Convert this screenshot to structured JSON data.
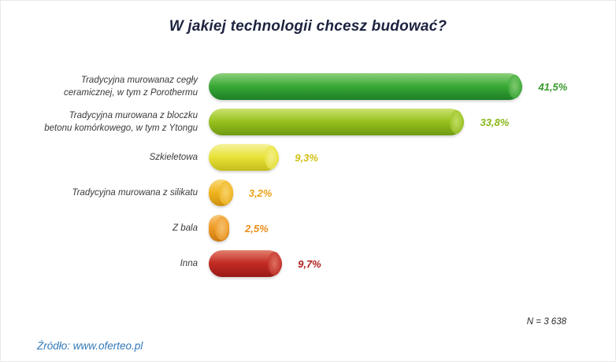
{
  "header": {
    "title": "W jakiej technologii chcesz budować?"
  },
  "footer": {
    "n_label": "N = 3 638",
    "source": "Źródło: www.oferteo.pl"
  },
  "chart_data": {
    "type": "bar",
    "orientation": "horizontal",
    "title": "W jakiej technologii chcesz budować?",
    "categories": [
      "Tradycyjna murowanaz cegły\nceramicznej, w tym z Porothermu",
      "Tradycyjna murowana z bloczku\nbetonu komórkowego, w tym z Ytongu",
      "Szkieletowa",
      "Tradycyjna murowana z silikatu",
      "Z bala",
      "Inna"
    ],
    "values": [
      41.5,
      33.8,
      9.3,
      3.2,
      2.5,
      9.7
    ],
    "value_labels": [
      "41,5%",
      "33,8%",
      "9,3%",
      "3,2%",
      "2,5%",
      "9,7%"
    ],
    "unit": "%",
    "xlim": [
      0,
      43
    ],
    "grid": false,
    "legend": false,
    "sample_size": "N = 3 638",
    "bar_colors": [
      {
        "light": "#8fd07d",
        "base": "#39a935",
        "dark": "#1e7f27",
        "value_color": "#3a9a2f"
      },
      {
        "light": "#cbe272",
        "base": "#97c11e",
        "dark": "#6f9a12",
        "value_color": "#8ab71b"
      },
      {
        "light": "#f6f29e",
        "base": "#e8e337",
        "dark": "#c4bc1c",
        "value_color": "#d2c013"
      },
      {
        "light": "#f9d97c",
        "base": "#f1b51f",
        "dark": "#cd9010",
        "value_color": "#eba31a"
      },
      {
        "light": "#f8ca82",
        "base": "#ef9a23",
        "dark": "#cb7a12",
        "value_color": "#ee8c1a"
      },
      {
        "light": "#e2806f",
        "base": "#c32b23",
        "dark": "#981a16",
        "value_color": "#b22020"
      }
    ]
  }
}
